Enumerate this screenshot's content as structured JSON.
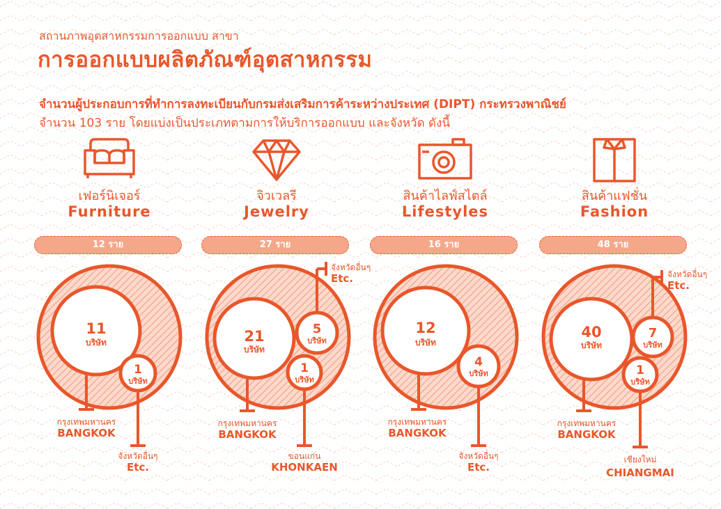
{
  "header": {
    "subtitle": "สถานภาพอุตสาหกรรมการออกแบบ สาขา",
    "title": "การออกแบบผลิตภัณฑ์อุตสาหกรรม",
    "desc_line1": "จำนวนผู้ประกอบการที่ทำการลงทะเบียนกับกรมส่งเสริมการค้าระหว่างประเทศ (DIPT) กระทรวงพาณิชย์",
    "desc_line2": "จำนวน 103 ราย โดยแบ่งเป็นประเภทตามการให้บริการออกแบบ และจังหวัด ดังนี้"
  },
  "unit_company": "บริษัท",
  "colors": {
    "accent": "#e8572b",
    "pill": "#f4a88a",
    "hatch": "#f6b59c"
  },
  "categories": [
    {
      "icon": "sofa-icon",
      "name_th": "เฟอร์นิเจอร์",
      "name_en": "Furniture",
      "total": "12 ราย",
      "groups": [
        {
          "count": "11",
          "city_th": "กรุงเทพมหานคร",
          "city_en": "BANGKOK"
        },
        {
          "count": "1",
          "city_th": "จังหวัดอื่นๆ",
          "city_en": "Etc."
        }
      ]
    },
    {
      "icon": "diamond-icon",
      "name_th": "จิวเวลรี",
      "name_en": "Jewelry",
      "total": "27 ราย",
      "groups": [
        {
          "count": "21",
          "city_th": "กรุงเทพมหานคร",
          "city_en": "BANGKOK"
        },
        {
          "count": "5",
          "city_th": "จังหวัดอื่นๆ",
          "city_en": "Etc."
        },
        {
          "count": "1",
          "city_th": "ขอนแก่น",
          "city_en": "KHONKAEN"
        }
      ]
    },
    {
      "icon": "camera-icon",
      "name_th": "สินค้าไลฟ์สไตล์",
      "name_en": "Lifestyles",
      "total": "16 ราย",
      "groups": [
        {
          "count": "12",
          "city_th": "กรุงเทพมหานคร",
          "city_en": "BANGKOK"
        },
        {
          "count": "4",
          "city_th": "จังหวัดอื่นๆ",
          "city_en": "Etc."
        }
      ]
    },
    {
      "icon": "shirt-icon",
      "name_th": "สินค้าแฟชั่น",
      "name_en": "Fashion",
      "total": "48 ราย",
      "groups": [
        {
          "count": "40",
          "city_th": "กรุงเทพมหานคร",
          "city_en": "BANGKOK"
        },
        {
          "count": "7",
          "city_th": "จังหวัดอื่นๆ",
          "city_en": "Etc."
        },
        {
          "count": "1",
          "city_th": "เชียงใหม่",
          "city_en": "CHIANGMAI"
        }
      ]
    }
  ]
}
